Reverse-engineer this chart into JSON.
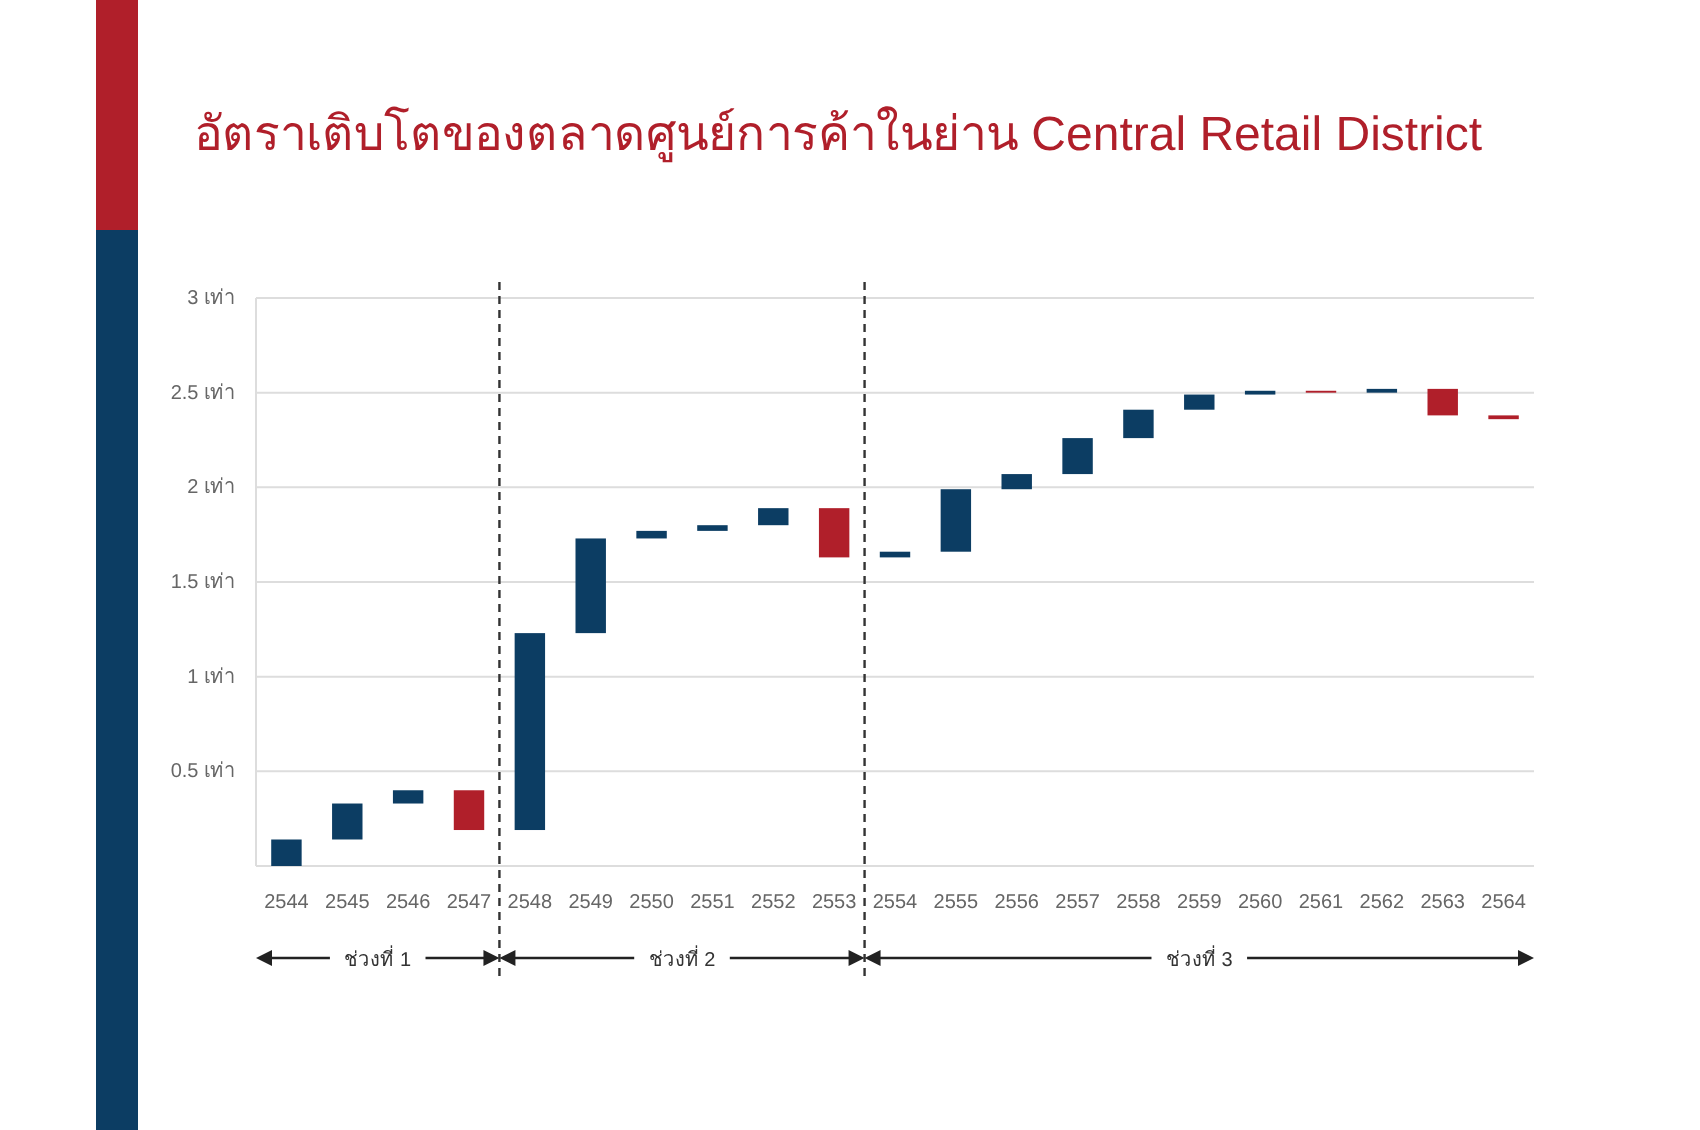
{
  "chart_data": {
    "type": "bar",
    "title": "อัตราเติบโตของตลาดศูนย์การค้าในย่าน Central Retail District",
    "x": [
      2544,
      2545,
      2546,
      2547,
      2548,
      2549,
      2550,
      2551,
      2552,
      2553,
      2554,
      2555,
      2556,
      2557,
      2558,
      2559,
      2560,
      2561,
      2562,
      2563,
      2564
    ],
    "base": [
      0,
      0.14,
      0.33,
      0.4,
      0.19,
      1.23,
      1.73,
      1.77,
      1.8,
      1.89,
      1.63,
      1.66,
      1.99,
      2.07,
      2.26,
      2.41,
      2.49,
      2.51,
      2.5,
      2.52,
      2.38
    ],
    "values": [
      0.14,
      0.19,
      0.07,
      -0.21,
      1.04,
      0.5,
      0.04,
      0.03,
      0.09,
      -0.26,
      0.03,
      0.33,
      0.08,
      0.19,
      0.15,
      0.08,
      0.02,
      -0.01,
      0.02,
      -0.14,
      -0.02
    ],
    "colors": [
      "#0c3d63",
      "#0c3d63",
      "#0c3d63",
      "#b01f2a",
      "#0c3d63",
      "#0c3d63",
      "#0c3d63",
      "#0c3d63",
      "#0c3d63",
      "#b01f2a",
      "#0c3d63",
      "#0c3d63",
      "#0c3d63",
      "#0c3d63",
      "#0c3d63",
      "#0c3d63",
      "#0c3d63",
      "#b01f2a",
      "#0c3d63",
      "#b01f2a",
      "#b01f2a"
    ],
    "xlim": [
      2543.5,
      2564.5
    ],
    "xticks": [
      2544,
      2545,
      2546,
      2547,
      2548,
      2549,
      2550,
      2551,
      2552,
      2553,
      2554,
      2555,
      2556,
      2557,
      2558,
      2559,
      2560,
      2561,
      2562,
      2563,
      2564
    ],
    "ylim": [
      0,
      3
    ],
    "yticks": [
      {
        "value": 0,
        "label": null
      },
      {
        "value": 0.5,
        "label": "0.5 เท่า"
      },
      {
        "value": 1,
        "label": "1 เท่า"
      },
      {
        "value": 1.5,
        "label": "1.5 เท่า"
      },
      {
        "value": 2,
        "label": "2 เท่า"
      },
      {
        "value": 2.5,
        "label": "2.5 เท่า"
      },
      {
        "value": 3,
        "label": "3 เท่า"
      }
    ],
    "grid": "y",
    "ref_lines": [
      {
        "axis": "x",
        "value": 2547.5,
        "label": null,
        "line_style": "dashed",
        "color": "#333333"
      },
      {
        "axis": "x",
        "value": 2553.5,
        "label": null,
        "line_style": "dashed",
        "color": "#333333"
      }
    ],
    "annotations": [
      "ช่วงที่ 1",
      "ช่วงที่ 2",
      "ช่วงที่ 3"
    ]
  }
}
